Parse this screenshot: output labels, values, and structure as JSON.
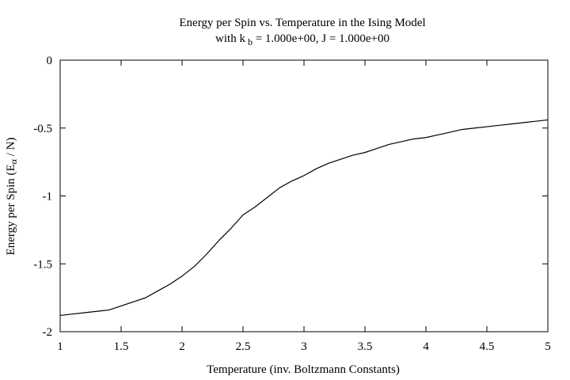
{
  "chart_data": {
    "type": "line",
    "title_line1": "Energy per Spin vs. Temperature in the Ising Model",
    "title_line2_prefix": "with k",
    "title_line2_sub": "b",
    "title_line2_suffix": " = 1.000e+00, J = 1.000e+00",
    "xlabel": "Temperature (inv. Boltzmann Constants)",
    "ylabel_prefix": "Energy per Spin (E",
    "ylabel_symbol": "α",
    "ylabel_suffix": " / N)",
    "xlim": [
      1,
      5
    ],
    "ylim": [
      -2,
      0
    ],
    "x_ticks": [
      1,
      1.5,
      2,
      2.5,
      3,
      3.5,
      4,
      4.5,
      5
    ],
    "x_tick_labels": [
      "1",
      "1.5",
      "2",
      "2.5",
      "3",
      "3.5",
      "4",
      "4.5",
      "5"
    ],
    "y_ticks": [
      -2,
      -1.5,
      -1,
      -0.5,
      0
    ],
    "y_tick_labels": [
      "-2",
      "-1.5",
      "-1",
      "-0.5",
      "0"
    ],
    "grid": false,
    "line_color": "#000000",
    "series": [
      {
        "x": [
          1.0,
          1.1,
          1.2,
          1.3,
          1.4,
          1.5,
          1.6,
          1.7,
          1.8,
          1.9,
          2.0,
          2.1,
          2.2,
          2.3,
          2.4,
          2.5,
          2.6,
          2.7,
          2.8,
          2.9,
          3.0,
          3.1,
          3.2,
          3.3,
          3.4,
          3.5,
          3.6,
          3.7,
          3.8,
          3.9,
          4.0,
          4.1,
          4.2,
          4.3,
          4.4,
          4.5,
          4.6,
          4.7,
          4.8,
          4.9,
          5.0
        ],
        "y": [
          -1.88,
          -1.87,
          -1.86,
          -1.85,
          -1.84,
          -1.81,
          -1.78,
          -1.75,
          -1.7,
          -1.65,
          -1.59,
          -1.52,
          -1.43,
          -1.33,
          -1.24,
          -1.14,
          -1.08,
          -1.01,
          -0.94,
          -0.89,
          -0.85,
          -0.8,
          -0.76,
          -0.73,
          -0.7,
          -0.68,
          -0.65,
          -0.62,
          -0.6,
          -0.58,
          -0.57,
          -0.55,
          -0.53,
          -0.51,
          -0.5,
          -0.49,
          -0.48,
          -0.47,
          -0.46,
          -0.45,
          -0.44
        ]
      }
    ]
  }
}
